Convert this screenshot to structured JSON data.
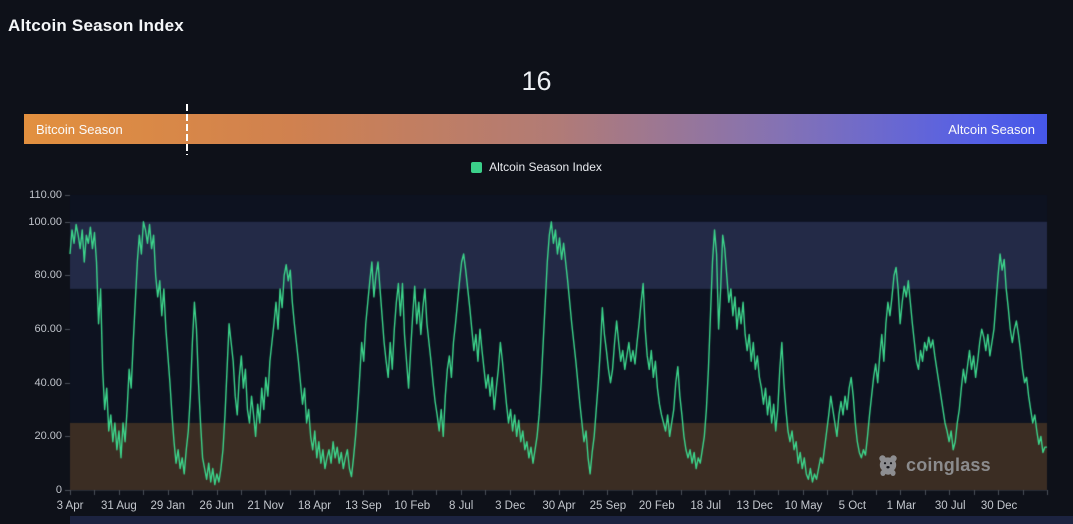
{
  "page": {
    "title": "Altcoin Season Index"
  },
  "index": {
    "current_value": "16"
  },
  "season_bar": {
    "left_label": "Bitcoin Season",
    "right_label": "Altcoin Season",
    "marker_percent": 16,
    "gradient_start_color": "#e2903f",
    "gradient_end_color": "#4657e8"
  },
  "legend": {
    "label": "Altcoin Season Index",
    "swatch_color": "#3bd08a"
  },
  "watermark": {
    "text": "coinglass"
  },
  "chart_data": {
    "type": "line",
    "title": "Altcoin Season Index",
    "series_name": "Altcoin Season Index",
    "line_color": "#3dd68c",
    "plot_bg_color": "#0d1220",
    "ylim": [
      0,
      110
    ],
    "grid": false,
    "y_ticks": [
      {
        "label": "110.00",
        "value": 110
      },
      {
        "label": "100.00",
        "value": 100
      },
      {
        "label": "80.00",
        "value": 80
      },
      {
        "label": "60.00",
        "value": 60
      },
      {
        "label": "40.00",
        "value": 40
      },
      {
        "label": "20.00",
        "value": 20
      },
      {
        "label": "0",
        "value": 0
      }
    ],
    "x_tick_labels": [
      "3 Apr",
      "31 Aug",
      "29 Jan",
      "26 Jun",
      "21 Nov",
      "18 Apr",
      "13 Sep",
      "10 Feb",
      "8 Jul",
      "3 Dec",
      "30 Apr",
      "25 Sep",
      "20 Feb",
      "18 Jul",
      "13 Dec",
      "10 May",
      "5 Oct",
      "1 Mar",
      "30 Jul",
      "30 Dec"
    ],
    "bands": [
      {
        "name": "altcoin-season-zone",
        "from": 75,
        "to": 100,
        "color": "#232a47"
      },
      {
        "name": "bitcoin-season-zone",
        "from": 0,
        "to": 25,
        "color": "#3b2d23"
      }
    ],
    "values": [
      88,
      97,
      92,
      99,
      95,
      90,
      97,
      85,
      95,
      92,
      98,
      90,
      96,
      85,
      62,
      75,
      45,
      30,
      38,
      22,
      28,
      18,
      25,
      15,
      22,
      12,
      25,
      18,
      30,
      45,
      38,
      55,
      70,
      85,
      95,
      88,
      100,
      97,
      92,
      99,
      90,
      95,
      80,
      72,
      78,
      65,
      75,
      60,
      50,
      40,
      28,
      18,
      10,
      15,
      8,
      12,
      6,
      15,
      22,
      35,
      55,
      70,
      60,
      40,
      25,
      12,
      8,
      4,
      10,
      3,
      8,
      2,
      6,
      3,
      8,
      15,
      28,
      45,
      62,
      55,
      48,
      35,
      28,
      42,
      50,
      38,
      45,
      30,
      25,
      35,
      28,
      20,
      32,
      25,
      38,
      30,
      42,
      35,
      48,
      55,
      62,
      70,
      60,
      75,
      68,
      80,
      84,
      78,
      82,
      70,
      62,
      55,
      48,
      40,
      32,
      38,
      25,
      30,
      20,
      15,
      22,
      12,
      18,
      10,
      15,
      8,
      12,
      15,
      10,
      18,
      12,
      16,
      10,
      14,
      8,
      12,
      15,
      8,
      5,
      12,
      20,
      30,
      42,
      55,
      48,
      62,
      70,
      78,
      85,
      72,
      80,
      85,
      75,
      65,
      55,
      48,
      42,
      55,
      45,
      60,
      70,
      77,
      65,
      77,
      58,
      48,
      38,
      52,
      65,
      76,
      62,
      70,
      58,
      68,
      75,
      62,
      55,
      48,
      40,
      33,
      28,
      22,
      30,
      20,
      35,
      45,
      50,
      42,
      55,
      62,
      70,
      78,
      85,
      88,
      82,
      75,
      68,
      60,
      52,
      58,
      48,
      60,
      52,
      45,
      38,
      43,
      35,
      42,
      30,
      38,
      45,
      55,
      48,
      40,
      32,
      25,
      30,
      22,
      28,
      20,
      26,
      18,
      22,
      15,
      18,
      12,
      16,
      10,
      15,
      20,
      28,
      40,
      55,
      70,
      85,
      95,
      100,
      92,
      97,
      88,
      94,
      86,
      92,
      85,
      78,
      70,
      62,
      55,
      48,
      40,
      32,
      25,
      18,
      22,
      12,
      6,
      14,
      20,
      30,
      40,
      52,
      68,
      58,
      52,
      45,
      40,
      45,
      55,
      63,
      55,
      48,
      52,
      45,
      50,
      55,
      48,
      52,
      47,
      55,
      62,
      70,
      77,
      60,
      50,
      45,
      52,
      42,
      48,
      38,
      32,
      28,
      25,
      22,
      28,
      20,
      25,
      30,
      40,
      46,
      35,
      28,
      20,
      15,
      12,
      15,
      10,
      14,
      8,
      12,
      10,
      15,
      20,
      30,
      45,
      65,
      85,
      97,
      88,
      60,
      75,
      95,
      90,
      80,
      70,
      75,
      65,
      72,
      60,
      68,
      62,
      70,
      58,
      52,
      58,
      48,
      55,
      45,
      50,
      42,
      38,
      32,
      38,
      28,
      35,
      25,
      32,
      22,
      30,
      45,
      55,
      40,
      30,
      22,
      18,
      22,
      15,
      18,
      10,
      14,
      8,
      12,
      6,
      4,
      8,
      3,
      6,
      4,
      8,
      12,
      10,
      16,
      22,
      28,
      35,
      30,
      25,
      20,
      28,
      33,
      28,
      35,
      30,
      38,
      42,
      35,
      25,
      18,
      14,
      12,
      15,
      13,
      20,
      28,
      35,
      42,
      47,
      40,
      50,
      58,
      48,
      62,
      70,
      65,
      72,
      80,
      83,
      75,
      62,
      70,
      76,
      72,
      78,
      70,
      62,
      55,
      48,
      45,
      52,
      48,
      55,
      52,
      57,
      53,
      56,
      50,
      45,
      40,
      35,
      30,
      25,
      22,
      18,
      22,
      15,
      18,
      25,
      30,
      38,
      45,
      40,
      46,
      52,
      45,
      50,
      42,
      48,
      55,
      60,
      57,
      52,
      58,
      50,
      55,
      60,
      70,
      80,
      88,
      82,
      86,
      75,
      68,
      60,
      55,
      60,
      63,
      58,
      52,
      45,
      40,
      42,
      35,
      30,
      25,
      28,
      22,
      17,
      20,
      14,
      16,
      16
    ]
  }
}
